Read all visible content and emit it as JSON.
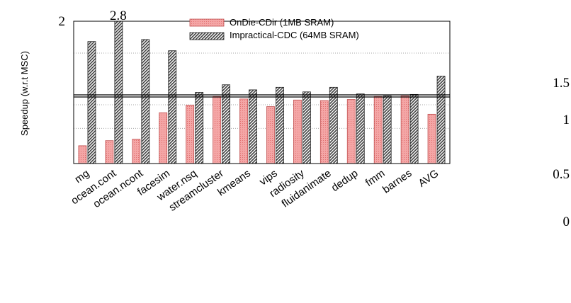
{
  "chart_data": {
    "type": "bar",
    "ylabel": "Speedup (w.r.t MSC)",
    "categories": [
      "mg",
      "ocean.cont",
      "ocean.ncont",
      "facesim",
      "water.nsq",
      "streamcluster",
      "kmeans",
      "vips",
      "radiosity",
      "fluidanimate",
      "dedup",
      "fmm",
      "barnes",
      "AVG"
    ],
    "series": [
      {
        "name": "OnDie-CDir (1MB SRAM)",
        "color": "#f4a6a6",
        "pattern": "dots",
        "values": [
          0.35,
          0.45,
          0.48,
          1.0,
          1.15,
          1.32,
          1.27,
          1.12,
          1.25,
          1.24,
          1.26,
          1.32,
          1.33,
          0.97
        ]
      },
      {
        "name": "Impractical-CDC (64MB SRAM)",
        "color": "#bdbdbd",
        "pattern": "diagonal",
        "values": [
          2.4,
          2.8,
          2.44,
          2.22,
          1.4,
          1.55,
          1.45,
          1.5,
          1.41,
          1.5,
          1.37,
          1.33,
          1.36,
          1.72
        ]
      }
    ],
    "ylim": [
      0,
      2.8
    ],
    "ytick_labels": [
      {
        "label": "2",
        "value": 2.8
      },
      {
        "label": "1.5",
        "value": 2.1
      },
      {
        "label": "1",
        "value": 1.4
      },
      {
        "label": "0.5",
        "value": 0.7
      },
      {
        "label": "0",
        "value": 0
      }
    ],
    "annotations": [
      {
        "text": "2.8",
        "category": "ocean.cont"
      }
    ],
    "reference_line": 1.33,
    "grid": true,
    "legend_position": "top-right"
  }
}
